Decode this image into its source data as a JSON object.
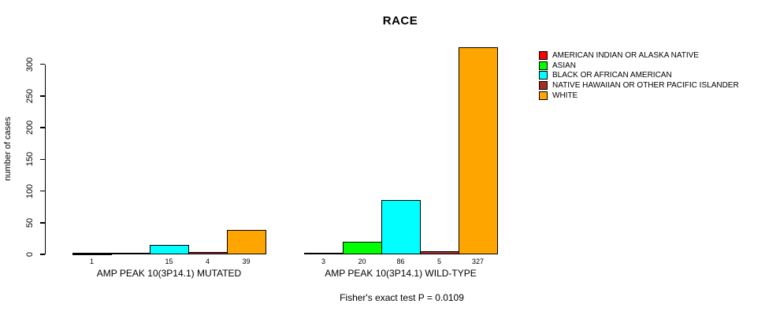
{
  "chart_data": {
    "type": "bar",
    "title": "RACE",
    "xlabel": "",
    "ylabel": "number of cases",
    "yticks": [
      0,
      50,
      100,
      150,
      200,
      250,
      300
    ],
    "ylim": [
      0,
      330
    ],
    "grid": false,
    "legend_position": "right",
    "categories": [
      "AMERICAN INDIAN OR ALASKA NATIVE",
      "ASIAN",
      "BLACK OR AFRICAN AMERICAN",
      "NATIVE HAWAIIAN OR OTHER PACIFIC ISLANDER",
      "WHITE"
    ],
    "colors": [
      "#FF0000",
      "#00FF00",
      "#00FFFF",
      "#A52A2A",
      "#FFA500"
    ],
    "groups": [
      {
        "label": "AMP PEAK 10(3P14.1) MUTATED",
        "values": [
          1,
          0,
          15,
          4,
          39
        ],
        "value_labels": [
          "1",
          "",
          "15",
          "4",
          "39"
        ]
      },
      {
        "label": "AMP PEAK 10(3P14.1) WILD-TYPE",
        "values": [
          3,
          20,
          86,
          5,
          327
        ],
        "value_labels": [
          "3",
          "20",
          "86",
          "5",
          "327"
        ]
      }
    ],
    "annotation": "Fisher's exact test P = 0.0109"
  }
}
